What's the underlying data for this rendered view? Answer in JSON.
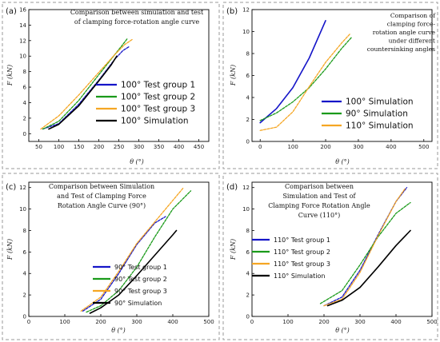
{
  "chart_data": [
    {
      "panel": "(a)",
      "type": "line",
      "title_lines": [
        "Comparison between simulation and test",
        "of clamping force-rotation angle curve"
      ],
      "xlabel": "θ (°)",
      "ylabel": "F (kN)",
      "xlim": [
        25,
        475
      ],
      "ylim": [
        -1,
        16
      ],
      "xticks": [
        50,
        100,
        150,
        200,
        250,
        300,
        350,
        400,
        450
      ],
      "yticks": [
        0,
        2,
        4,
        6,
        8,
        10,
        12,
        14,
        16
      ],
      "legend_position": "lower-right",
      "series": [
        {
          "name": "100° Test group 1",
          "color": "#1515c8",
          "dashed": true,
          "x": [
            60,
            100,
            150,
            200,
            240,
            260,
            275
          ],
          "y": [
            0.6,
            1.3,
            3.8,
            6.9,
            9.6,
            10.7,
            11.2
          ]
        },
        {
          "name": "100° Test group 2",
          "color": "#1a9a1a",
          "dashed": true,
          "x": [
            60,
            100,
            150,
            200,
            240,
            260,
            272
          ],
          "y": [
            0.6,
            1.6,
            4.3,
            7.6,
            10.2,
            11.5,
            12.3
          ]
        },
        {
          "name": "100° Test group 3",
          "color": "#f5a623",
          "dashed": true,
          "x": [
            55,
            100,
            150,
            200,
            240,
            265,
            285
          ],
          "y": [
            0.6,
            2.3,
            5.0,
            7.9,
            10.2,
            11.5,
            12.2
          ]
        },
        {
          "name": "100° Simulation",
          "color": "#000000",
          "dashed": false,
          "x": [
            75,
            100,
            150,
            200,
            230,
            245
          ],
          "y": [
            0.6,
            1.2,
            3.6,
            6.8,
            8.8,
            10.0
          ]
        }
      ]
    },
    {
      "panel": "(b)",
      "type": "line",
      "title_lines": [
        "Comparison of",
        "clamping force-",
        "rotation angle curve",
        "under different",
        "countersinking angles"
      ],
      "xlabel": "θ (°)",
      "ylabel": "F (kN)",
      "xlim": [
        -25,
        525
      ],
      "ylim": [
        0,
        12
      ],
      "xticks": [
        0,
        100,
        200,
        300,
        400,
        500
      ],
      "yticks": [
        0,
        2,
        4,
        6,
        8,
        10,
        12
      ],
      "legend_position": "lower-right",
      "series": [
        {
          "name": "100° Simulation",
          "color": "#1515c8",
          "dashed": false,
          "x": [
            0,
            50,
            100,
            150,
            200
          ],
          "y": [
            1.7,
            3.0,
            4.9,
            7.6,
            11.0
          ]
        },
        {
          "name": "90° Simulation",
          "color": "#1a9a1a",
          "dashed": true,
          "x": [
            0,
            50,
            100,
            150,
            200,
            250,
            280
          ],
          "y": [
            1.9,
            2.6,
            3.6,
            4.9,
            6.6,
            8.5,
            9.5
          ]
        },
        {
          "name": "110° Simulation",
          "color": "#f5a623",
          "dashed": true,
          "x": [
            0,
            50,
            100,
            150,
            200,
            250,
            275
          ],
          "y": [
            1.0,
            1.3,
            2.7,
            5.0,
            7.2,
            9.0,
            9.8
          ]
        }
      ]
    },
    {
      "panel": "(c)",
      "type": "line",
      "title_lines": [
        "Comparison between Simulation",
        "and Test of Clamping Force",
        "Rotation Angle Curve (90°)"
      ],
      "xlabel": "θ (°)",
      "ylabel": "F (kN)",
      "xlim": [
        0,
        500
      ],
      "ylim": [
        0,
        12.5
      ],
      "xticks": [
        0,
        100,
        200,
        300,
        400,
        500
      ],
      "yticks": [
        0,
        2,
        4,
        6,
        8,
        10,
        12
      ],
      "legend_position": "lower-right",
      "series": [
        {
          "name": "90° Test group 1",
          "color": "#1515c8",
          "dashed": true,
          "x": [
            150,
            200,
            250,
            300,
            350,
            380
          ],
          "y": [
            0.5,
            1.6,
            4.0,
            6.7,
            8.7,
            9.3
          ]
        },
        {
          "name": "90° Test group 2",
          "color": "#1a9a1a",
          "dashed": true,
          "x": [
            160,
            200,
            250,
            300,
            350,
            400,
            450
          ],
          "y": [
            0.4,
            1.0,
            2.4,
            4.6,
            7.4,
            10.0,
            11.7
          ]
        },
        {
          "name": "90° Test group 3",
          "color": "#f5a623",
          "dashed": true,
          "x": [
            145,
            200,
            250,
            300,
            350,
            400,
            430
          ],
          "y": [
            0.5,
            1.8,
            4.2,
            6.8,
            8.8,
            10.8,
            12.0
          ]
        },
        {
          "name": "90° Simulation",
          "color": "#000000",
          "dashed": false,
          "x": [
            170,
            200,
            250,
            300,
            350,
            400,
            410
          ],
          "y": [
            0.3,
            0.8,
            2.0,
            3.8,
            5.7,
            7.6,
            8.0
          ]
        }
      ]
    },
    {
      "panel": "(d)",
      "type": "line",
      "title_lines": [
        "Comparison between",
        "Simulation and Test of",
        "Clamping Force Rotation Angle",
        "Curve (110°)"
      ],
      "xlabel": "θ (°)",
      "ylabel": "F (kN)",
      "xlim": [
        0,
        500
      ],
      "ylim": [
        0,
        12.5
      ],
      "xticks": [
        0,
        100,
        200,
        300,
        400,
        500
      ],
      "yticks": [
        0,
        2,
        4,
        6,
        8,
        10,
        12
      ],
      "legend_position": "lower-right",
      "series": [
        {
          "name": "110° Test group 1",
          "color": "#1515c8",
          "dashed": true,
          "x": [
            200,
            250,
            300,
            350,
            400,
            430
          ],
          "y": [
            1.0,
            1.8,
            4.3,
            7.6,
            10.7,
            12.0
          ]
        },
        {
          "name": "110° Test group 2",
          "color": "#1a9a1a",
          "dashed": true,
          "x": [
            190,
            250,
            300,
            350,
            400,
            440
          ],
          "y": [
            1.2,
            2.4,
            4.8,
            7.4,
            9.6,
            10.6
          ]
        },
        {
          "name": "110° Test group 3",
          "color": "#f5a623",
          "dashed": true,
          "x": [
            200,
            250,
            300,
            350,
            400,
            425
          ],
          "y": [
            1.0,
            1.6,
            4.1,
            7.5,
            10.7,
            11.9
          ]
        },
        {
          "name": "110° Simulation",
          "color": "#000000",
          "dashed": false,
          "x": [
            210,
            250,
            300,
            350,
            400,
            440
          ],
          "y": [
            1.0,
            1.5,
            2.7,
            4.6,
            6.6,
            8.0
          ]
        }
      ]
    }
  ]
}
